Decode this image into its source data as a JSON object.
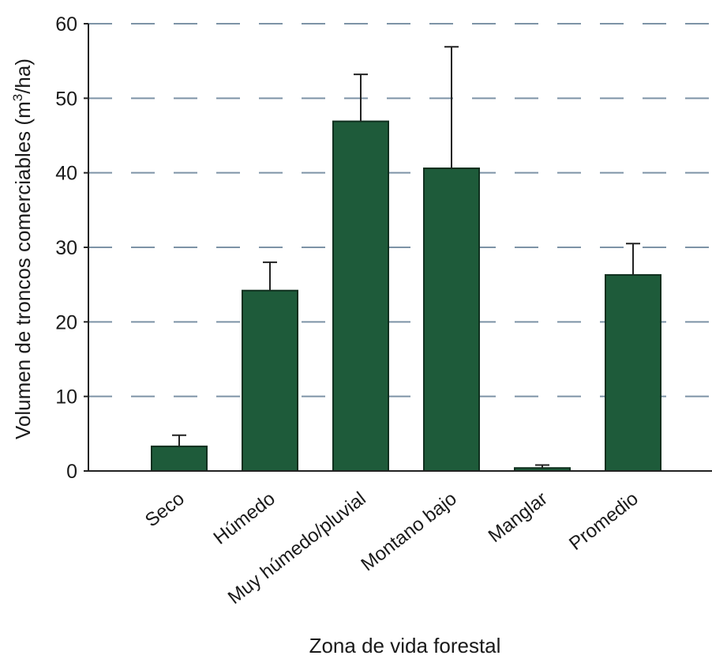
{
  "chart_data": {
    "type": "bar",
    "title": "",
    "xlabel": "Zona de vida forestal",
    "ylabel_main": "Volumen de troncos comerciables (m",
    "ylabel_sup": "3",
    "ylabel_end": "/ha)",
    "categories": [
      "Seco",
      "Húmedo",
      "Muy húmedo/pluvial",
      "Montano bajo",
      "Manglar",
      "Promedio"
    ],
    "values": [
      3.3,
      24.2,
      46.9,
      40.6,
      0.4,
      26.3
    ],
    "error_upper": [
      4.8,
      28.0,
      53.2,
      56.9,
      0.8,
      30.5
    ],
    "ylim": [
      0,
      60
    ],
    "yticks": [
      0,
      10,
      20,
      30,
      40,
      50,
      60
    ],
    "grid": true,
    "bar_color": "#1e5b3a",
    "grid_color": "#7d93a6"
  }
}
